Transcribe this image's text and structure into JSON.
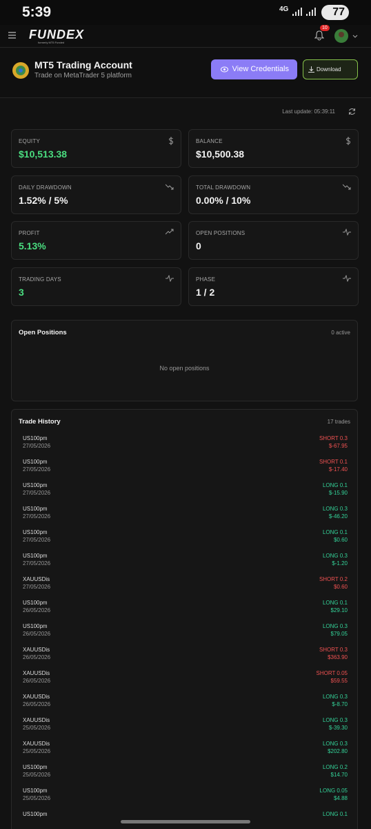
{
  "status_bar": {
    "time": "5:39",
    "network": "4G",
    "battery": "77"
  },
  "header": {
    "logo": "FUNDEX",
    "logo_tagline": "formerly MT5 Funded",
    "notifications": "10"
  },
  "account": {
    "title": "MT5 Trading Account",
    "subtitle": "Trade on MetaTrader 5 platform",
    "view_button": "View Credentials",
    "download_button": "Download"
  },
  "last_update": "Last update: 05:39:11",
  "stats": [
    {
      "label": "EQUITY",
      "value": "$10,513.38"
    },
    {
      "label": "BALANCE",
      "value": "$10,500.38"
    },
    {
      "label": "DAILY DRAWDOWN",
      "value": "1.52% / 5%"
    },
    {
      "label": "TOTAL DRAWDOWN",
      "value": "0.00% / 10%"
    },
    {
      "label": "PROFIT",
      "value": "5.13%"
    },
    {
      "label": "OPEN POSITIONS",
      "value": "0"
    },
    {
      "label": "TRADING DAYS",
      "value": "3"
    },
    {
      "label": "PHASE",
      "value": "1 / 2"
    }
  ],
  "open_positions": {
    "title": "Open Positions",
    "count": "0 active",
    "empty": "No open positions"
  },
  "trade_history": {
    "title": "Trade History",
    "count": "17 trades",
    "trades": [
      {
        "symbol": "US100pm",
        "date": "27/05/2026",
        "side": "SHORT 0.3",
        "pnl": "$-67.95",
        "color": "#f05252"
      },
      {
        "symbol": "US100pm",
        "date": "27/05/2026",
        "side": "SHORT 0.1",
        "pnl": "$-17.40",
        "color": "#f05252"
      },
      {
        "symbol": "US100pm",
        "date": "27/05/2026",
        "side": "LONG 0.1",
        "pnl": "$-15.90",
        "color": "#34d399"
      },
      {
        "symbol": "US100pm",
        "date": "27/05/2026",
        "side": "LONG 0.3",
        "pnl": "$-46.20",
        "color": "#34d399"
      },
      {
        "symbol": "US100pm",
        "date": "27/05/2026",
        "side": "LONG 0.1",
        "pnl": "$0.60",
        "color": "#34d399"
      },
      {
        "symbol": "US100pm",
        "date": "27/05/2026",
        "side": "LONG 0.3",
        "pnl": "$-1.20",
        "color": "#34d399"
      },
      {
        "symbol": "XAUUSDis",
        "date": "27/05/2026",
        "side": "SHORT 0.2",
        "pnl": "$0.60",
        "color": "#f05252"
      },
      {
        "symbol": "US100pm",
        "date": "26/05/2026",
        "side": "LONG 0.1",
        "pnl": "$29.10",
        "color": "#34d399"
      },
      {
        "symbol": "US100pm",
        "date": "26/05/2026",
        "side": "LONG 0.3",
        "pnl": "$79.05",
        "color": "#34d399"
      },
      {
        "symbol": "XAUUSDis",
        "date": "26/05/2026",
        "side": "SHORT 0.3",
        "pnl": "$363.90",
        "color": "#f05252"
      },
      {
        "symbol": "XAUUSDis",
        "date": "26/05/2026",
        "side": "SHORT 0.05",
        "pnl": "$59.55",
        "color": "#f05252"
      },
      {
        "symbol": "XAUUSDis",
        "date": "26/05/2026",
        "side": "LONG 0.3",
        "pnl": "$-8.70",
        "color": "#34d399"
      },
      {
        "symbol": "XAUUSDis",
        "date": "25/05/2026",
        "side": "LONG 0.3",
        "pnl": "$-39.30",
        "color": "#34d399"
      },
      {
        "symbol": "XAUUSDis",
        "date": "25/05/2026",
        "side": "LONG 0.3",
        "pnl": "$202.80",
        "color": "#34d399"
      },
      {
        "symbol": "US100pm",
        "date": "25/05/2026",
        "side": "LONG 0.2",
        "pnl": "$14.70",
        "color": "#34d399"
      },
      {
        "symbol": "US100pm",
        "date": "25/05/2026",
        "side": "LONG 0.05",
        "pnl": "$4.88",
        "color": "#34d399"
      },
      {
        "symbol": "US100pm",
        "side": "LONG 0.1",
        "color": "#34d399"
      }
    ]
  }
}
